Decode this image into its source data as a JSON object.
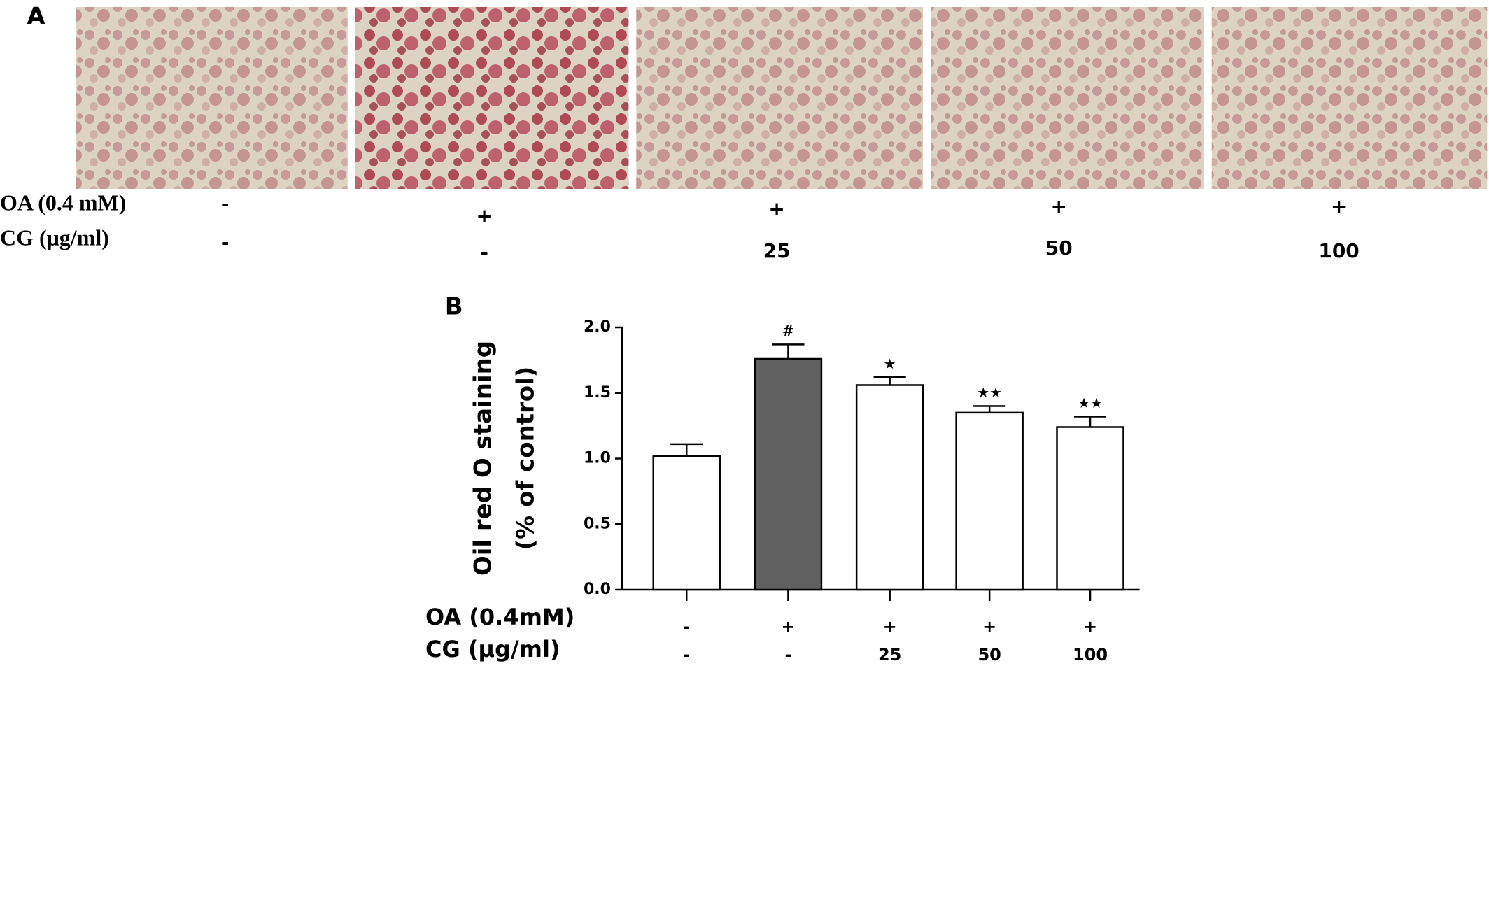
{
  "panel_a": {
    "label": "A",
    "row_labels": [
      "OA (0.4 mM)",
      "CG (μg/ml)"
    ],
    "oa": [
      "-",
      "+",
      "+",
      "+",
      "+"
    ],
    "cg": [
      "-",
      "-",
      "25",
      "50",
      "100"
    ]
  },
  "chart_data": {
    "type": "bar",
    "panel_label": "B",
    "y_label_lines": [
      "Oil red O staining",
      "(% of control)"
    ],
    "values": [
      1.02,
      1.76,
      1.56,
      1.35,
      1.24
    ],
    "errors": [
      0.09,
      0.11,
      0.06,
      0.05,
      0.08
    ],
    "annotations": [
      null,
      "#",
      "★",
      "★★",
      "★★"
    ],
    "colors": [
      "#ffffff",
      "#606060",
      "#ffffff",
      "#ffffff",
      "#ffffff"
    ],
    "ylim": [
      0,
      2
    ],
    "yticks": [
      {
        "value": 0,
        "label": "0.0"
      },
      0.5,
      {
        "value": 1,
        "label": "1.0"
      },
      1.5,
      {
        "value": 2,
        "label": "2.0"
      }
    ],
    "row_labels": [
      "OA (0.4mM)",
      "CG  (μg/ml)"
    ],
    "oa": [
      "-",
      "+",
      "+",
      "+",
      "+"
    ],
    "cg": [
      "-",
      "-",
      "25",
      "50",
      "100"
    ]
  }
}
